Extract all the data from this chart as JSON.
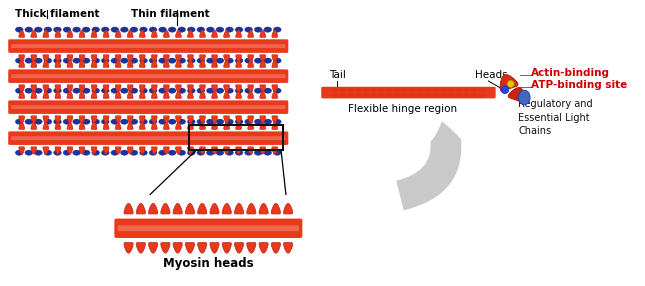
{
  "background_color": "#ffffff",
  "thick_core_color": "#e8391c",
  "thick_highlight_color": "#f5826a",
  "thin_color": "#1e3399",
  "head_color": "#e8391c",
  "head_edge_color": "#c02010",
  "head_dark_color": "#c02010",
  "label_thick": "Thick filament",
  "label_thin": "Thin filament",
  "label_myosin_heads": "Myosin heads",
  "label_tail": "Tail",
  "label_heads": "Heads",
  "label_flexible": "Flexible hinge region",
  "label_actin": "Actin-binding",
  "label_atp": "ATP-binding site",
  "label_regulatory": "Regulatory and\nEssential Light\nChains",
  "actin_color": "#cc0000",
  "atp_color": "#cc0000",
  "black": "#111111",
  "arrow_color": "#c0c0c0",
  "blue_lc": "#4466bb",
  "blue_dot": "#2244dd",
  "yellow_dot": "#ddcc00",
  "box_color": "#111111"
}
